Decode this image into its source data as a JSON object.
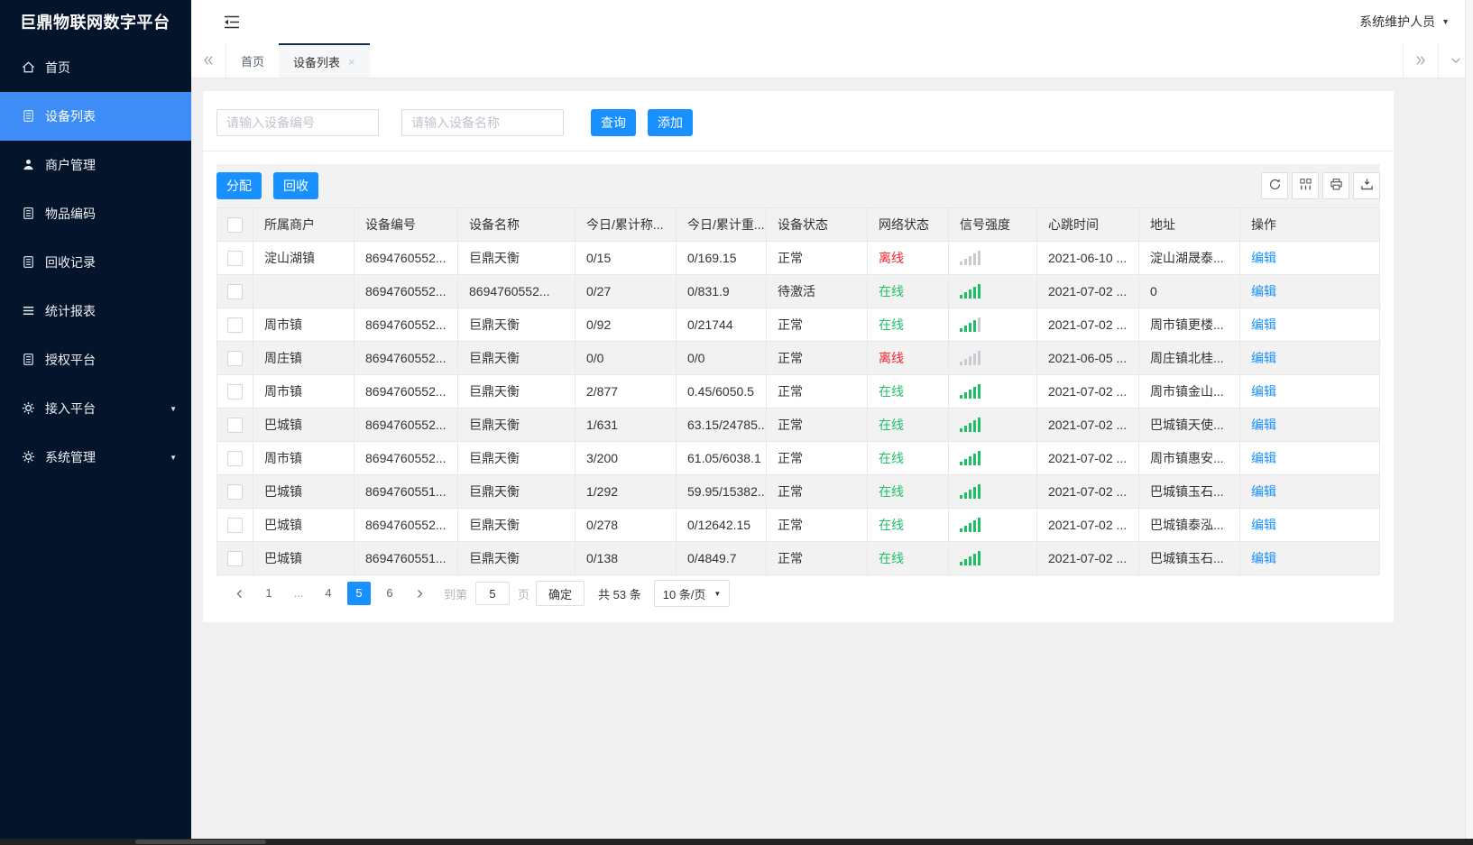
{
  "app": {
    "brand": "巨鼎物联网数字平台",
    "user_menu": "系统维护人员"
  },
  "sidebar": {
    "items": [
      {
        "label": "首页",
        "icon": "home-icon",
        "active": false,
        "caret": false
      },
      {
        "label": "设备列表",
        "icon": "document-icon",
        "active": true,
        "caret": false
      },
      {
        "label": "商户管理",
        "icon": "user-icon",
        "active": false,
        "caret": false
      },
      {
        "label": "物品编码",
        "icon": "document-icon",
        "active": false,
        "caret": false
      },
      {
        "label": "回收记录",
        "icon": "document-icon",
        "active": false,
        "caret": false
      },
      {
        "label": "统计报表",
        "icon": "list-icon",
        "active": false,
        "caret": false
      },
      {
        "label": "授权平台",
        "icon": "document-icon",
        "active": false,
        "caret": false
      },
      {
        "label": "接入平台",
        "icon": "gear-icon",
        "active": false,
        "caret": true
      },
      {
        "label": "系统管理",
        "icon": "gear-icon",
        "active": false,
        "caret": true
      }
    ]
  },
  "tabs": {
    "items": [
      {
        "label": "首页",
        "active": false,
        "closable": false
      },
      {
        "label": "设备列表",
        "active": true,
        "closable": true
      }
    ],
    "close_glyph": "×"
  },
  "search": {
    "device_no_placeholder": "请输入设备编号",
    "device_name_placeholder": "请输入设备名称",
    "query_label": "查询",
    "add_label": "添加"
  },
  "toolbar": {
    "assign_label": "分配",
    "recycle_label": "回收",
    "icon_buttons": [
      "refresh-icon",
      "columns-icon",
      "print-icon",
      "export-icon"
    ]
  },
  "table": {
    "columns": [
      "所属商户",
      "设备编号",
      "设备名称",
      "今日/累计称...",
      "今日/累计重...",
      "设备状态",
      "网络状态",
      "信号强度",
      "心跳时间",
      "地址",
      "操作"
    ],
    "rows": [
      {
        "merchant": "淀山湖镇",
        "device_no": "8694760552...",
        "device_name": "巨鼎天衡",
        "today_total_count": "0/15",
        "today_total_weight": "0/169.15",
        "device_status": "正常",
        "network_status": "离线",
        "online": false,
        "signal_bars": 0,
        "heartbeat": "2021-06-10 ...",
        "address": "淀山湖晟泰...",
        "action": "编辑"
      },
      {
        "merchant": "",
        "device_no": "8694760552...",
        "device_name": "8694760552...",
        "today_total_count": "0/27",
        "today_total_weight": "0/831.9",
        "device_status": "待激活",
        "network_status": "在线",
        "online": true,
        "signal_bars": 5,
        "heartbeat": "2021-07-02 ...",
        "address": "0",
        "action": "编辑"
      },
      {
        "merchant": "周市镇",
        "device_no": "8694760552...",
        "device_name": "巨鼎天衡",
        "today_total_count": "0/92",
        "today_total_weight": "0/21744",
        "device_status": "正常",
        "network_status": "在线",
        "online": true,
        "signal_bars": 4,
        "heartbeat": "2021-07-02 ...",
        "address": "周市镇更楼...",
        "action": "编辑"
      },
      {
        "merchant": "周庄镇",
        "device_no": "8694760552...",
        "device_name": "巨鼎天衡",
        "today_total_count": "0/0",
        "today_total_weight": "0/0",
        "device_status": "正常",
        "network_status": "离线",
        "online": false,
        "signal_bars": 0,
        "heartbeat": "2021-06-05 ...",
        "address": "周庄镇北桂...",
        "action": "编辑"
      },
      {
        "merchant": "周市镇",
        "device_no": "8694760552...",
        "device_name": "巨鼎天衡",
        "today_total_count": "2/877",
        "today_total_weight": "0.45/6050.5",
        "device_status": "正常",
        "network_status": "在线",
        "online": true,
        "signal_bars": 5,
        "heartbeat": "2021-07-02 ...",
        "address": "周市镇金山...",
        "action": "编辑"
      },
      {
        "merchant": "巴城镇",
        "device_no": "8694760552...",
        "device_name": "巨鼎天衡",
        "today_total_count": "1/631",
        "today_total_weight": "63.15/24785...",
        "device_status": "正常",
        "network_status": "在线",
        "online": true,
        "signal_bars": 5,
        "heartbeat": "2021-07-02 ...",
        "address": "巴城镇天使...",
        "action": "编辑"
      },
      {
        "merchant": "周市镇",
        "device_no": "8694760552...",
        "device_name": "巨鼎天衡",
        "today_total_count": "3/200",
        "today_total_weight": "61.05/6038.1",
        "device_status": "正常",
        "network_status": "在线",
        "online": true,
        "signal_bars": 5,
        "heartbeat": "2021-07-02 ...",
        "address": "周市镇惠安...",
        "action": "编辑"
      },
      {
        "merchant": "巴城镇",
        "device_no": "8694760551...",
        "device_name": "巨鼎天衡",
        "today_total_count": "1/292",
        "today_total_weight": "59.95/15382...",
        "device_status": "正常",
        "network_status": "在线",
        "online": true,
        "signal_bars": 5,
        "heartbeat": "2021-07-02 ...",
        "address": "巴城镇玉石...",
        "action": "编辑"
      },
      {
        "merchant": "巴城镇",
        "device_no": "8694760552...",
        "device_name": "巨鼎天衡",
        "today_total_count": "0/278",
        "today_total_weight": "0/12642.15",
        "device_status": "正常",
        "network_status": "在线",
        "online": true,
        "signal_bars": 5,
        "heartbeat": "2021-07-02 ...",
        "address": "巴城镇泰泓...",
        "action": "编辑"
      },
      {
        "merchant": "巴城镇",
        "device_no": "8694760551...",
        "device_name": "巨鼎天衡",
        "today_total_count": "0/138",
        "today_total_weight": "0/4849.7",
        "device_status": "正常",
        "network_status": "在线",
        "online": true,
        "signal_bars": 5,
        "heartbeat": "2021-07-02 ...",
        "address": "巴城镇玉石...",
        "action": "编辑"
      }
    ]
  },
  "pagination": {
    "pages": [
      {
        "label": "1",
        "active": false,
        "ellipsis": false
      },
      {
        "label": "...",
        "active": false,
        "ellipsis": true
      },
      {
        "label": "4",
        "active": false,
        "ellipsis": false
      },
      {
        "label": "5",
        "active": true,
        "ellipsis": false
      },
      {
        "label": "6",
        "active": false,
        "ellipsis": false
      }
    ],
    "jump_prefix": "到第",
    "jump_value": "5",
    "jump_suffix": "页",
    "confirm_label": "确定",
    "total_label": "共 53 条",
    "per_page_label": "10 条/页"
  },
  "colors": {
    "accent_blue": "#1890ff",
    "sidebar_active_blue": "#3e8df6",
    "online_green": "#1fbf67",
    "offline_red": "#f5222d",
    "signal_gray_bar": "#c8cbd1",
    "sidebar_bg": "#04152b"
  }
}
